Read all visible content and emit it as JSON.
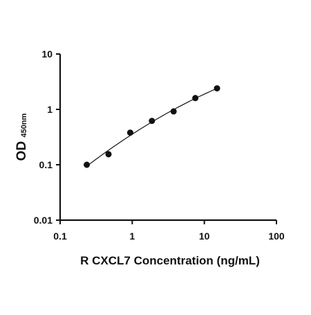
{
  "chart_data": {
    "type": "scatter",
    "title": "",
    "xlabel": "R CXCL7 Concentration (ng/mL)",
    "ylabel_main": "OD",
    "ylabel_sub": "450nm",
    "x_scale": "log",
    "y_scale": "log",
    "xlim": [
      0.1,
      100
    ],
    "ylim": [
      0.01,
      10
    ],
    "x_ticks": [
      0.1,
      1,
      10,
      100
    ],
    "x_tick_labels": [
      "0.1",
      "1",
      "10",
      "100"
    ],
    "y_ticks": [
      0.01,
      0.1,
      1,
      10
    ],
    "y_tick_labels": [
      "0.01",
      "0.1",
      "1",
      "10"
    ],
    "grid": false,
    "legend": "none",
    "series": [
      {
        "points": [
          {
            "x": 0.234,
            "y": 0.1
          },
          {
            "x": 0.469,
            "y": 0.155
          },
          {
            "x": 0.938,
            "y": 0.38
          },
          {
            "x": 1.875,
            "y": 0.62
          },
          {
            "x": 3.75,
            "y": 0.92
          },
          {
            "x": 7.5,
            "y": 1.6
          },
          {
            "x": 15,
            "y": 2.4
          }
        ]
      }
    ],
    "colors": {
      "marker": "#111111",
      "line": "#111111",
      "axis": "#111111"
    }
  }
}
